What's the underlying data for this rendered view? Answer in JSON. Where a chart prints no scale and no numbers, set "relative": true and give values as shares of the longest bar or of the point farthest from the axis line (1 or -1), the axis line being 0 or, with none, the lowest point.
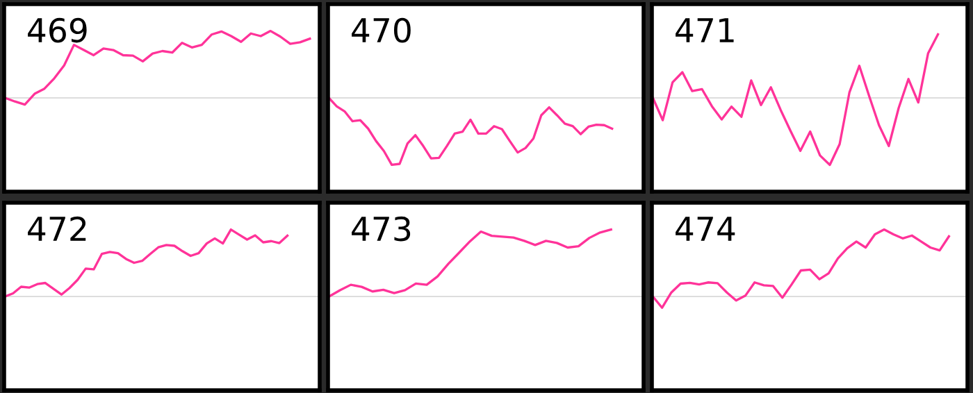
{
  "chart_data": [
    {
      "type": "line",
      "title": "469",
      "relative": true,
      "color": "#ff3399",
      "categories": [
        null,
        null,
        null,
        null,
        null,
        null,
        null,
        null,
        null,
        null,
        null,
        null,
        null,
        null,
        null,
        null,
        null,
        null,
        null,
        null,
        null,
        null,
        null,
        null,
        null,
        null,
        null,
        null,
        null,
        null,
        null,
        null,
        null
      ],
      "values": [
        0,
        -0.054,
        -0.1,
        0.062,
        0.138,
        0.292,
        0.485,
        0.792,
        0.715,
        0.638,
        0.738,
        0.715,
        0.638,
        0.631,
        0.546,
        0.662,
        0.7,
        0.677,
        0.823,
        0.754,
        0.792,
        0.946,
        0.992,
        0.923,
        0.838,
        0.962,
        0.923,
        1,
        0.915,
        0.808,
        0.831,
        0.885,
        null
      ]
    },
    {
      "type": "line",
      "title": "470",
      "relative": true,
      "color": "#ff3399",
      "categories": [
        null,
        null,
        null,
        null,
        null,
        null,
        null,
        null,
        null,
        null,
        null,
        null,
        null,
        null,
        null,
        null,
        null,
        null,
        null,
        null,
        null,
        null,
        null,
        null,
        null,
        null,
        null,
        null,
        null,
        null,
        null,
        null,
        null,
        null,
        null,
        null,
        null,
        null,
        null,
        null,
        null
      ],
      "values": [
        0,
        -0.126,
        -0.2,
        -0.348,
        -0.333,
        -0.459,
        -0.644,
        -0.793,
        -1,
        -0.985,
        -0.681,
        -0.556,
        -0.719,
        -0.904,
        -0.896,
        -0.719,
        -0.533,
        -0.504,
        -0.326,
        -0.533,
        -0.533,
        -0.422,
        -0.467,
        -0.644,
        -0.815,
        -0.748,
        -0.607,
        -0.259,
        -0.141,
        -0.259,
        -0.385,
        -0.422,
        -0.541,
        -0.43,
        -0.4,
        -0.407,
        -0.459,
        null,
        null,
        null,
        null
      ]
    },
    {
      "type": "line",
      "title": "471",
      "relative": true,
      "color": "#ff3399",
      "categories": [
        null,
        null,
        null,
        null,
        null,
        null,
        null,
        null,
        null,
        null,
        null,
        null,
        null,
        null,
        null,
        null,
        null,
        null,
        null,
        null,
        null,
        null,
        null,
        null,
        null,
        null,
        null,
        null,
        null,
        null,
        null,
        null,
        null
      ],
      "values": [
        0,
        -0.333,
        0.232,
        0.384,
        0.102,
        0.13,
        -0.124,
        -0.322,
        -0.13,
        -0.282,
        0.26,
        -0.107,
        0.158,
        -0.181,
        -0.492,
        -0.791,
        -0.503,
        -0.859,
        -1,
        -0.689,
        0.085,
        0.48,
        0.028,
        -0.407,
        -0.718,
        -0.153,
        0.282,
        -0.068,
        0.667,
        0.949,
        null,
        null,
        null
      ]
    },
    {
      "type": "line",
      "title": "472",
      "relative": true,
      "color": "#ff3399",
      "categories": [
        null,
        null,
        null,
        null,
        null,
        null,
        null,
        null,
        null,
        null,
        null,
        null,
        null,
        null,
        null,
        null,
        null,
        null,
        null,
        null,
        null,
        null,
        null,
        null,
        null,
        null,
        null,
        null,
        null,
        null,
        null,
        null,
        null,
        null,
        null,
        null,
        null,
        null,
        null,
        null
      ],
      "values": [
        0,
        0.046,
        0.145,
        0.133,
        0.185,
        0.202,
        0.116,
        0.029,
        0.127,
        0.249,
        0.416,
        0.405,
        0.636,
        0.665,
        0.647,
        0.561,
        0.503,
        0.532,
        0.636,
        0.734,
        0.769,
        0.757,
        0.676,
        0.607,
        0.647,
        0.792,
        0.867,
        0.792,
        1,
        0.925,
        0.85,
        0.913,
        0.809,
        0.827,
        0.798,
        0.908,
        null,
        null,
        null,
        null
      ]
    },
    {
      "type": "line",
      "title": "473",
      "relative": true,
      "color": "#ff3399",
      "categories": [
        null,
        null,
        null,
        null,
        null,
        null,
        null,
        null,
        null,
        null,
        null,
        null,
        null,
        null,
        null,
        null,
        null,
        null,
        null,
        null,
        null,
        null,
        null,
        null,
        null,
        null,
        null,
        null,
        null,
        null
      ],
      "values": [
        0,
        0.094,
        0.175,
        0.144,
        0.075,
        0.1,
        0.05,
        0.094,
        0.194,
        0.175,
        0.3,
        0.488,
        0.656,
        0.825,
        0.969,
        0.906,
        0.894,
        0.881,
        0.831,
        0.769,
        0.831,
        0.8,
        0.731,
        0.75,
        0.875,
        0.956,
        1,
        null,
        null,
        null
      ]
    },
    {
      "type": "line",
      "title": "474",
      "relative": true,
      "color": "#ff3399",
      "categories": [
        null,
        null,
        null,
        null,
        null,
        null,
        null,
        null,
        null,
        null,
        null,
        null,
        null,
        null,
        null,
        null,
        null,
        null,
        null,
        null,
        null,
        null,
        null,
        null,
        null,
        null,
        null,
        null,
        null,
        null,
        null,
        null,
        null,
        null,
        null
      ],
      "values": [
        0,
        -0.168,
        0.06,
        0.192,
        0.204,
        0.18,
        0.21,
        0.198,
        0.06,
        -0.06,
        0.012,
        0.21,
        0.168,
        0.156,
        -0.018,
        0.18,
        0.389,
        0.401,
        0.257,
        0.347,
        0.569,
        0.719,
        0.82,
        0.731,
        0.928,
        1,
        0.928,
        0.868,
        0.91,
        0.82,
        0.731,
        0.689,
        0.898,
        null,
        null
      ]
    }
  ]
}
